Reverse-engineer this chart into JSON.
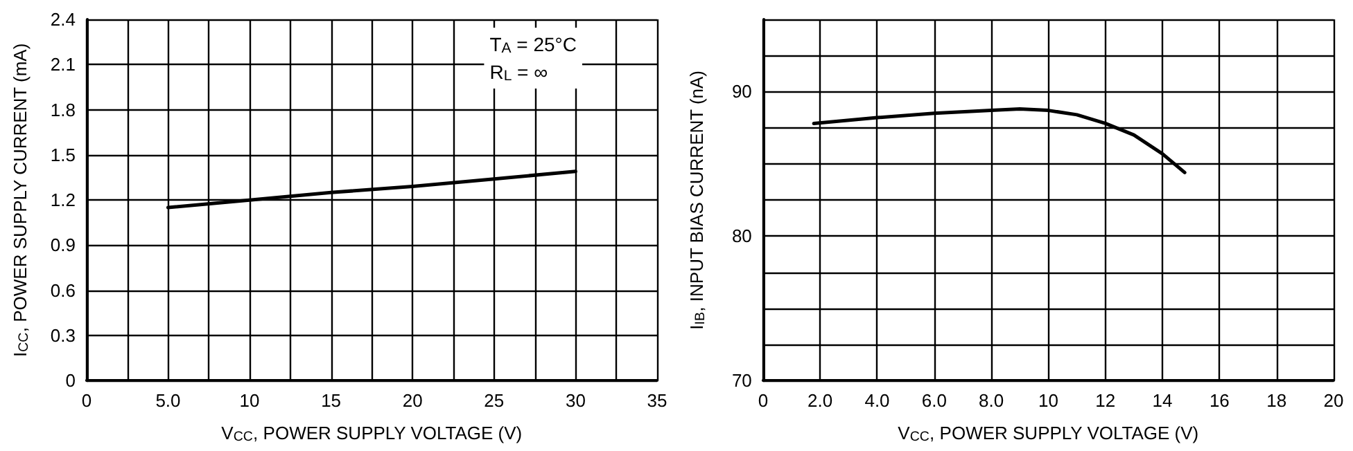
{
  "chart_data": [
    {
      "type": "line",
      "xlabel": "V$_{CC}$, POWER SUPPLY VOLTAGE (V)",
      "ylabel": "I$_{CC}$, POWER SUPPLY CURRENT (mA)",
      "annotations": [
        "T$_{A}$ = 25°C",
        "R$_{L}$ = ∞"
      ],
      "x": [
        5,
        10,
        15,
        20,
        25,
        30
      ],
      "series": [
        {
          "color": "#000000",
          "values": [
            1.15,
            1.2,
            1.25,
            1.29,
            1.34,
            1.39
          ]
        }
      ],
      "xlim": [
        0,
        35
      ],
      "xticks": [
        0,
        {
          "value": 2.5,
          "label": null
        },
        {
          "value": 5,
          "label": "5.0"
        },
        {
          "value": 7.5,
          "label": null
        },
        10,
        {
          "value": 12.5,
          "label": null
        },
        15,
        {
          "value": 17.5,
          "label": null
        },
        20,
        {
          "value": 22.5,
          "label": null
        },
        25,
        {
          "value": 27.5,
          "label": null
        },
        30,
        {
          "value": 32.5,
          "label": null
        },
        35
      ],
      "ylim": [
        0,
        2.4
      ],
      "yticks": [
        0,
        0.3,
        0.6,
        0.9,
        1.2,
        1.5,
        1.8,
        2.1,
        2.4
      ],
      "grid": true,
      "marker": "none",
      "line_style": "solid"
    },
    {
      "type": "line",
      "xlabel": "V$_{CC}$, POWER SUPPLY VOLTAGE (V)",
      "ylabel": "I$_{IB}$, INPUT BIAS CURRENT (nA)",
      "x": [
        1.78,
        4,
        6,
        8,
        9,
        10,
        11,
        12,
        13,
        14,
        14.78
      ],
      "series": [
        {
          "color": "#000000",
          "values": [
            87.8,
            88.2,
            88.5,
            88.7,
            88.8,
            88.7,
            88.4,
            87.8,
            87.0,
            85.7,
            84.4
          ]
        }
      ],
      "xlim": [
        0,
        20
      ],
      "xticks": [
        0,
        {
          "value": 2,
          "label": "2.0"
        },
        {
          "value": 4,
          "label": "4.0"
        },
        {
          "value": 6,
          "label": "6.0"
        },
        {
          "value": 8,
          "label": "8.0"
        },
        10,
        12,
        14,
        16,
        18,
        20
      ],
      "ylim": [
        70,
        95
      ],
      "yticks": [
        70,
        {
          "value": 72.5,
          "label": null
        },
        {
          "value": 75,
          "label": null
        },
        {
          "value": 77.5,
          "label": null
        },
        80,
        {
          "value": 82.5,
          "label": null
        },
        {
          "value": 85,
          "label": null
        },
        {
          "value": 87.5,
          "label": null
        },
        90,
        {
          "value": 92.5,
          "label": null
        },
        {
          "value": 95,
          "label": null
        }
      ],
      "grid": true,
      "marker": "none",
      "line_style": "solid"
    }
  ]
}
